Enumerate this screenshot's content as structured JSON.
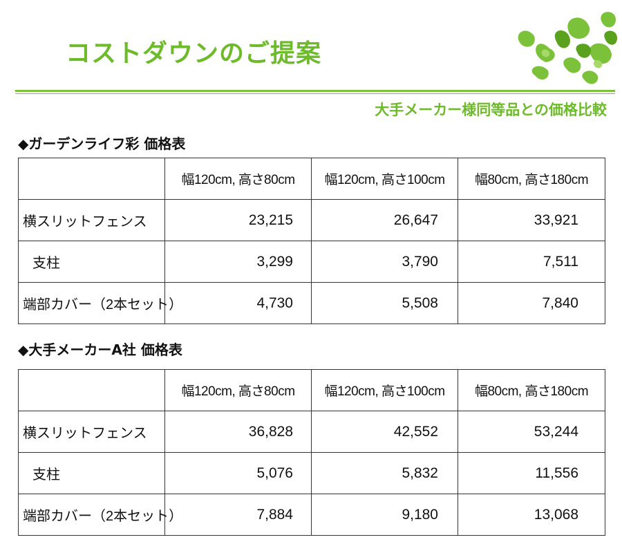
{
  "header": {
    "title": "コストダウンのご提案",
    "subtitle": "大手メーカー様同等品との価格比較",
    "accent_color": "#6dbb2a"
  },
  "decoration": {
    "icon": "green-leaves-icon"
  },
  "tables": [
    {
      "heading": "◆ガーデンライフ彩 価格表",
      "columns": [
        "",
        "幅120cm, 高さ80cm",
        "幅120cm, 高さ100cm",
        "幅80cm, 高さ180cm"
      ],
      "rows": [
        {
          "label": "横スリットフェンス",
          "values": [
            "23,215",
            "26,647",
            "33,921"
          ]
        },
        {
          "label": "支柱",
          "values": [
            "3,299",
            "3,790",
            "7,511"
          ]
        },
        {
          "label": "端部カバー（2本セット）",
          "values": [
            "4,730",
            "5,508",
            "7,840"
          ]
        }
      ]
    },
    {
      "heading": "◆大手メーカーA社 価格表",
      "columns": [
        "",
        "幅120cm, 高さ80cm",
        "幅120cm, 高さ100cm",
        "幅80cm, 高さ180cm"
      ],
      "rows": [
        {
          "label": "横スリットフェンス",
          "values": [
            "36,828",
            "42,552",
            "53,244"
          ]
        },
        {
          "label": "支柱",
          "values": [
            "5,076",
            "5,832",
            "11,556"
          ]
        },
        {
          "label": "端部カバー（2本セット）",
          "values": [
            "7,884",
            "9,180",
            "13,068"
          ]
        }
      ]
    }
  ]
}
